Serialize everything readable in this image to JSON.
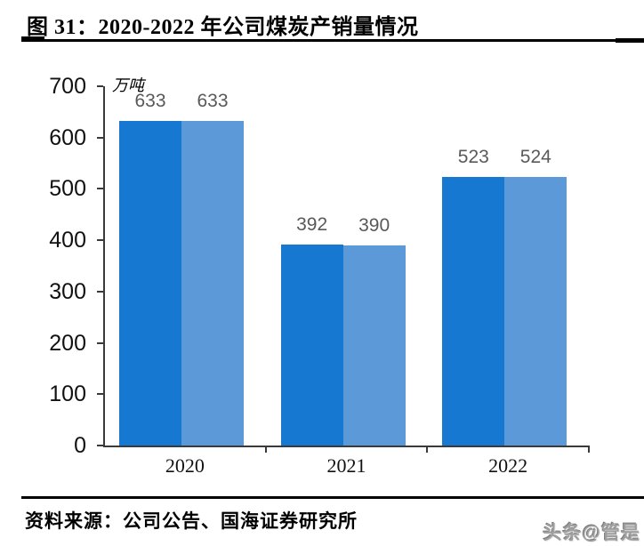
{
  "header": {
    "title": "图 31：2020-2022 年公司煤炭产销量情况"
  },
  "chart_data": {
    "type": "bar",
    "title": "图 31：2020-2022 年公司煤炭产销量情况",
    "unit_label": "万吨",
    "categories": [
      "2020",
      "2021",
      "2022"
    ],
    "series": [
      {
        "name": "series-1",
        "color": "#1778D2",
        "values": [
          633,
          392,
          523
        ]
      },
      {
        "name": "series-2",
        "color": "#5B99D8",
        "values": [
          633,
          390,
          524
        ]
      }
    ],
    "data_labels": [
      [
        633,
        392,
        523
      ],
      [
        633,
        390,
        524
      ]
    ],
    "xlabel": "",
    "ylabel": "",
    "ylim": [
      0,
      700
    ],
    "yticks": [
      0,
      100,
      200,
      300,
      400,
      500,
      600,
      700
    ],
    "grid": false,
    "legend_position": "none",
    "data_label_color": "#595959",
    "axis_color": "#3a3a3a"
  },
  "footer": {
    "source": "资料来源：公司公告、国海证券研究所",
    "watermark": "头条@管是"
  }
}
